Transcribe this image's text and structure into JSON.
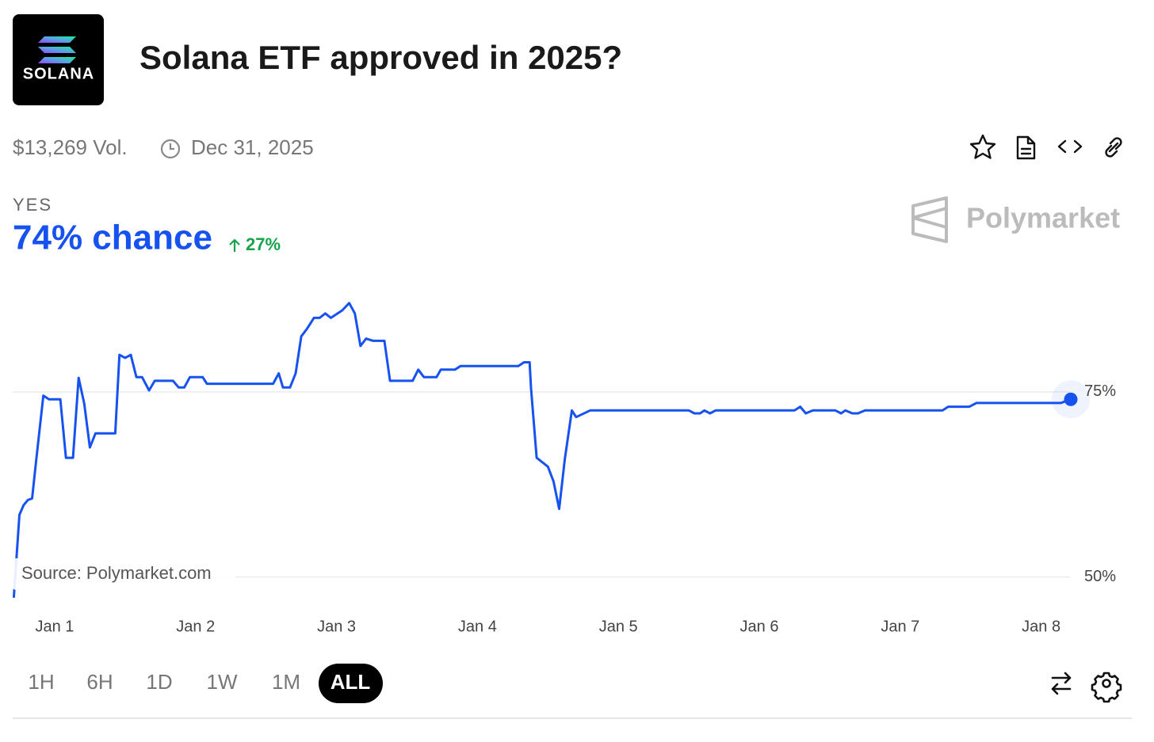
{
  "header": {
    "logo_text": "SOLANA",
    "title": "Solana ETF approved in 2025?"
  },
  "meta": {
    "volume": "$13,269 Vol.",
    "end_date": "Dec 31, 2025"
  },
  "outcome": {
    "label": "YES",
    "chance": "74% chance",
    "change": "27%"
  },
  "watermark": "Polymarket",
  "ranges": [
    "1H",
    "6H",
    "1D",
    "1W",
    "1M",
    "ALL"
  ],
  "active_range": "ALL",
  "chart_data": {
    "type": "line",
    "source": "Source: Polymarket.com",
    "color": "#1652f0",
    "grid": true,
    "xlim": [
      0.7,
      8.3
    ],
    "xticks": [
      {
        "value": 1,
        "label": "Jan 1"
      },
      {
        "value": 2,
        "label": "Jan 2"
      },
      {
        "value": 3,
        "label": "Jan 3"
      },
      {
        "value": 4,
        "label": "Jan 4"
      },
      {
        "value": 5,
        "label": "Jan 5"
      },
      {
        "value": 6,
        "label": "Jan 6"
      },
      {
        "value": 7,
        "label": "Jan 7"
      },
      {
        "value": 8,
        "label": "Jan 8"
      }
    ],
    "ylim": [
      46,
      89
    ],
    "yticks": [
      {
        "value": 50,
        "label": "50%"
      },
      {
        "value": 75,
        "label": "75%"
      }
    ],
    "x": [
      0.71,
      0.75,
      0.78,
      0.81,
      0.84,
      0.87,
      0.92,
      0.96,
      1.04,
      1.08,
      1.13,
      1.17,
      1.21,
      1.25,
      1.29,
      1.43,
      1.46,
      1.5,
      1.54,
      1.58,
      1.62,
      1.67,
      1.71,
      1.84,
      1.88,
      1.92,
      1.96,
      2.05,
      2.08,
      2.55,
      2.59,
      2.62,
      2.67,
      2.71,
      2.75,
      2.79,
      2.84,
      2.88,
      2.92,
      2.96,
      3.04,
      3.09,
      3.13,
      3.17,
      3.21,
      3.26,
      3.34,
      3.38,
      3.54,
      3.58,
      3.62,
      3.71,
      3.74,
      3.84,
      3.88,
      4.29,
      4.33,
      4.37,
      4.38,
      4.42,
      4.5,
      4.54,
      4.58,
      4.62,
      4.67,
      4.7,
      4.8,
      5.5,
      5.54,
      5.58,
      5.61,
      5.65,
      5.69,
      6.25,
      6.29,
      6.33,
      6.38,
      6.54,
      6.58,
      6.61,
      6.66,
      6.7,
      6.75,
      7.3,
      7.34,
      7.49,
      7.54,
      8.14,
      8.21
    ],
    "values": [
      47.2,
      58.4,
      59.7,
      60.4,
      60.6,
      65.9,
      74.5,
      74.0,
      74.0,
      66.1,
      66.1,
      76.9,
      73.4,
      67.5,
      69.4,
      69.4,
      80.0,
      79.6,
      80.0,
      77.0,
      77.0,
      75.2,
      76.5,
      76.5,
      75.6,
      75.6,
      77.0,
      77.0,
      76.1,
      76.1,
      77.5,
      75.6,
      75.6,
      77.5,
      82.5,
      83.5,
      85.0,
      85.0,
      85.6,
      85.0,
      86.0,
      87.0,
      85.6,
      81.2,
      82.2,
      81.9,
      81.9,
      76.5,
      76.5,
      78.0,
      77.0,
      77.0,
      78.0,
      78.0,
      78.5,
      78.5,
      79.0,
      79.0,
      75.5,
      66.1,
      64.9,
      62.9,
      59.2,
      65.9,
      72.5,
      71.6,
      72.5,
      72.5,
      72.1,
      72.1,
      72.5,
      72.1,
      72.5,
      72.5,
      73.0,
      72.1,
      72.5,
      72.5,
      72.1,
      72.5,
      72.1,
      72.1,
      72.5,
      72.5,
      73.0,
      73.0,
      73.5,
      73.5,
      74.0
    ]
  }
}
